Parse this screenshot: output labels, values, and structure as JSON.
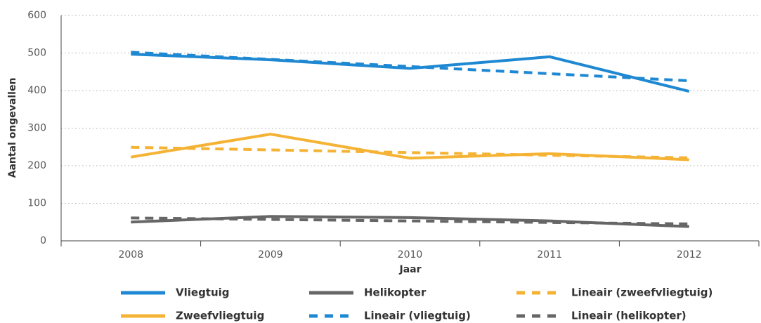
{
  "chart_data": {
    "type": "line",
    "x_label": "Jaar",
    "y_label": "Aantal ongevallen",
    "categories": [
      "2008",
      "2009",
      "2010",
      "2011",
      "2012"
    ],
    "ylim": [
      0,
      600
    ],
    "yticks": [
      0,
      100,
      200,
      300,
      400,
      500,
      600
    ],
    "grid": true,
    "legend": "bottom",
    "series": [
      {
        "name": "Vliegtuig",
        "color": "#1f88d2",
        "style": "solid",
        "values": [
          497,
          482,
          459,
          490,
          398
        ]
      },
      {
        "name": "Zweefvliegtuig",
        "color": "#f5b335",
        "style": "solid",
        "values": [
          223,
          284,
          220,
          232,
          216
        ]
      },
      {
        "name": "Helikopter",
        "color": "#666666",
        "style": "solid",
        "values": [
          50,
          65,
          62,
          53,
          38
        ]
      },
      {
        "name": "Lineair (vliegtuig)",
        "color": "#1f88d2",
        "style": "dashed",
        "values": [
          502,
          483,
          464,
          445,
          426
        ]
      },
      {
        "name": "Lineair (zweefvliegtuig)",
        "color": "#f5b335",
        "style": "dashed",
        "values": [
          249,
          242,
          235,
          228,
          221
        ]
      },
      {
        "name": "Lineair (helikopter)",
        "color": "#666666",
        "style": "dashed",
        "values": [
          61,
          57,
          53,
          49,
          45
        ]
      }
    ]
  }
}
